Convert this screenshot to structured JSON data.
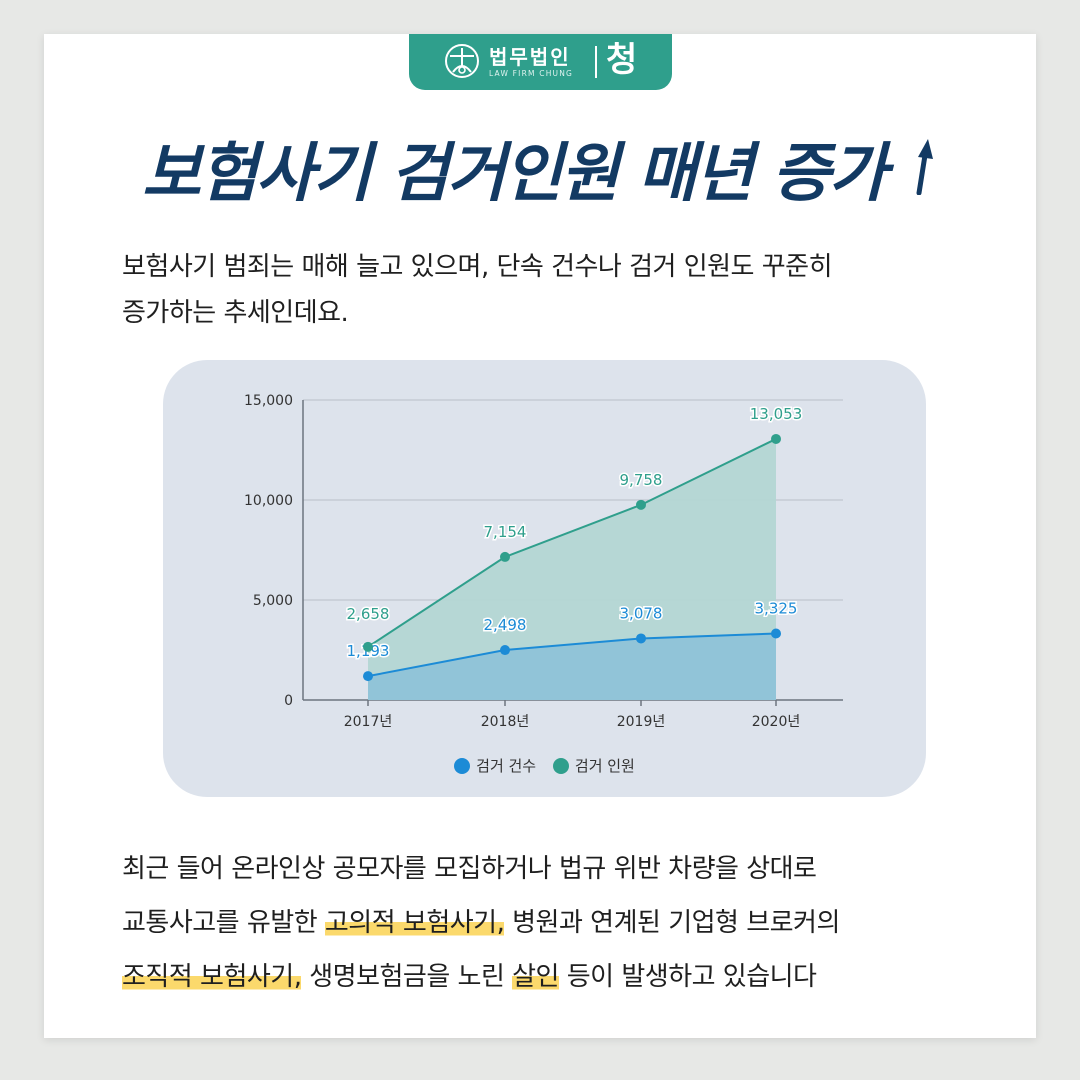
{
  "brand": {
    "name": "법무법인",
    "name_en": "LAW FIRM CHUNG",
    "mark": "청",
    "color": "#2f9f8c"
  },
  "headline": {
    "text": "보험사기 검거인원 매년 증가",
    "icon": "up-arrow-icon",
    "color": "#133a63"
  },
  "intro": {
    "lines": [
      "보험사기 범죄는 매해 늘고 있으며, 단속 건수나 검거 인원도 꾸준히",
      "증가하는 추세인데요."
    ]
  },
  "chart_data": {
    "type": "area",
    "categories": [
      "2017년",
      "2018년",
      "2019년",
      "2020년"
    ],
    "series": [
      {
        "name": "검거 건수",
        "values": [
          1193,
          2498,
          3078,
          3325
        ],
        "labels": [
          "1,193",
          "2,498",
          "3,078",
          "3,325"
        ],
        "color": "#1c8bd6"
      },
      {
        "name": "검거 인원",
        "values": [
          2658,
          7154,
          9758,
          13053
        ],
        "labels": [
          "2,658",
          "7,154",
          "9,758",
          "13,053"
        ],
        "color": "#2f9f8c"
      }
    ],
    "yticks": [
      0,
      5000,
      10000,
      15000
    ],
    "ytick_labels": [
      "0",
      "5,000",
      "10,000",
      "15,000"
    ],
    "ylim": [
      0,
      15000
    ],
    "grid": true,
    "legend_position": "bottom-center"
  },
  "body": {
    "line1": "최근 들어 온라인상 공모자를 모집하거나 법규 위반 차량을 상대로",
    "line2_a": "교통사고를 유발한 ",
    "line2_hl": "고의적 보험사기,",
    "line2_b": " 병원과 연계된 기업형 브로커의",
    "line3_hl1": "조직적 보험사기,",
    "line3_b": " 생명보험금을 노린 ",
    "line3_hl2": "살인",
    "line3_c": " 등이 발생하고 있습니다",
    "highlight_color": "#fbd96c"
  }
}
